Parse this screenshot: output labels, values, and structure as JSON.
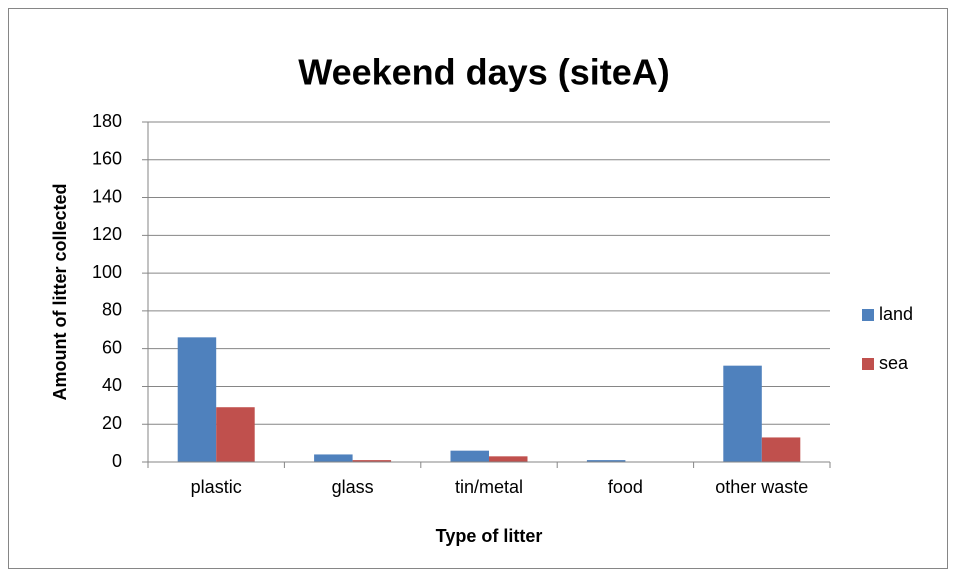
{
  "chart_data": {
    "type": "bar",
    "title": "Weekend days (siteA)",
    "x_label": "Type of litter",
    "y_label": "Amount of litter collected",
    "categories": [
      "plastic",
      "glass",
      "tin/metal",
      "food",
      "other waste"
    ],
    "series": [
      {
        "name": "land",
        "color": "#4f81bd",
        "values": [
          66,
          4,
          6,
          1,
          51
        ]
      },
      {
        "name": "sea",
        "color": "#c0504d",
        "values": [
          29,
          1,
          3,
          0,
          13
        ]
      }
    ],
    "ylim": [
      0,
      180
    ],
    "yticks": [
      0,
      20,
      40,
      60,
      80,
      100,
      120,
      140,
      160,
      180
    ],
    "grid": true,
    "legend": "right"
  }
}
